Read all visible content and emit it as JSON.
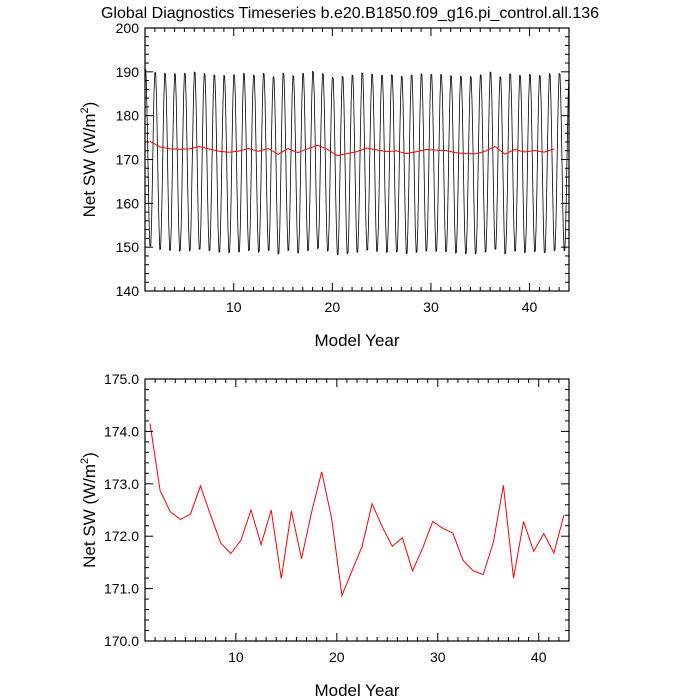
{
  "title": "Global Diagnostics Timeseries b.e20.B1850.f09_g16.pi_control.all.136",
  "chart_data": [
    {
      "type": "line",
      "xlabel": "Model Year",
      "ylabel_main": "Net SW (W/m",
      "ylabel_sup": "2",
      "ylabel_end": ")",
      "xlim": [
        1,
        44
      ],
      "ylim": [
        140,
        200
      ],
      "xticks": [
        10,
        20,
        30,
        40
      ],
      "yticks": [
        140,
        150,
        160,
        170,
        180,
        190,
        200
      ],
      "ytick_labels": [
        "140",
        "150",
        "160",
        "170",
        "180",
        "190",
        "200"
      ],
      "grid": false,
      "monthly_cycle": {
        "min": 148.3,
        "max": 190.0,
        "colour": "#000000"
      },
      "series": [
        {
          "colour": "#ff0000",
          "x": [
            1.5,
            2.5,
            3.5,
            4.5,
            5.5,
            6.5,
            7.5,
            8.5,
            9.5,
            10.5,
            11.5,
            12.5,
            13.5,
            14.5,
            15.5,
            16.5,
            17.5,
            18.5,
            19.5,
            20.5,
            21.5,
            22.5,
            23.5,
            24.5,
            25.5,
            26.5,
            27.5,
            28.5,
            29.5,
            30.5,
            31.5,
            32.5,
            33.5,
            34.5,
            35.5,
            36.5,
            37.5,
            38.5,
            39.5,
            40.5,
            41.5,
            42.5
          ],
          "values": [
            174.15,
            172.87,
            172.47,
            172.32,
            172.42,
            172.96,
            172.4,
            171.87,
            171.67,
            171.92,
            172.5,
            171.84,
            172.5,
            171.19,
            172.48,
            171.57,
            172.46,
            173.23,
            172.32,
            170.87,
            171.34,
            171.8,
            172.62,
            172.18,
            171.81,
            171.97,
            171.34,
            171.77,
            172.28,
            172.15,
            172.06,
            171.54,
            171.34,
            171.27,
            171.88,
            172.97,
            171.2,
            172.28,
            171.71,
            172.05,
            171.68,
            172.41
          ]
        }
      ]
    },
    {
      "type": "line",
      "xlabel": "Model Year",
      "ylabel_main": "Net SW (W/m",
      "ylabel_sup": "2",
      "ylabel_end": ")",
      "xlim": [
        1,
        43
      ],
      "ylim": [
        170,
        175
      ],
      "xticks": [
        10,
        20,
        30,
        40
      ],
      "yticks": [
        170,
        171,
        172,
        173,
        174,
        175
      ],
      "ytick_labels": [
        "170.0",
        "171.0",
        "172.0",
        "173.0",
        "174.0",
        "175.0"
      ],
      "grid": false,
      "series": [
        {
          "colour": "#ff0000",
          "x": [
            1.5,
            2.5,
            3.5,
            4.5,
            5.5,
            6.5,
            7.5,
            8.5,
            9.5,
            10.5,
            11.5,
            12.5,
            13.5,
            14.5,
            15.5,
            16.5,
            17.5,
            18.5,
            19.5,
            20.5,
            21.5,
            22.5,
            23.5,
            24.5,
            25.5,
            26.5,
            27.5,
            28.5,
            29.5,
            30.5,
            31.5,
            32.5,
            33.5,
            34.5,
            35.5,
            36.5,
            37.5,
            38.5,
            39.5,
            40.5,
            41.5,
            42.5
          ],
          "values": [
            174.15,
            172.87,
            172.47,
            172.32,
            172.42,
            172.96,
            172.4,
            171.87,
            171.67,
            171.92,
            172.5,
            171.84,
            172.5,
            171.19,
            172.48,
            171.57,
            172.46,
            173.23,
            172.32,
            170.87,
            171.34,
            171.8,
            172.62,
            172.18,
            171.81,
            171.97,
            171.34,
            171.77,
            172.28,
            172.15,
            172.06,
            171.54,
            171.34,
            171.27,
            171.88,
            172.97,
            171.2,
            172.28,
            171.71,
            172.05,
            171.68,
            172.41
          ]
        }
      ]
    }
  ]
}
